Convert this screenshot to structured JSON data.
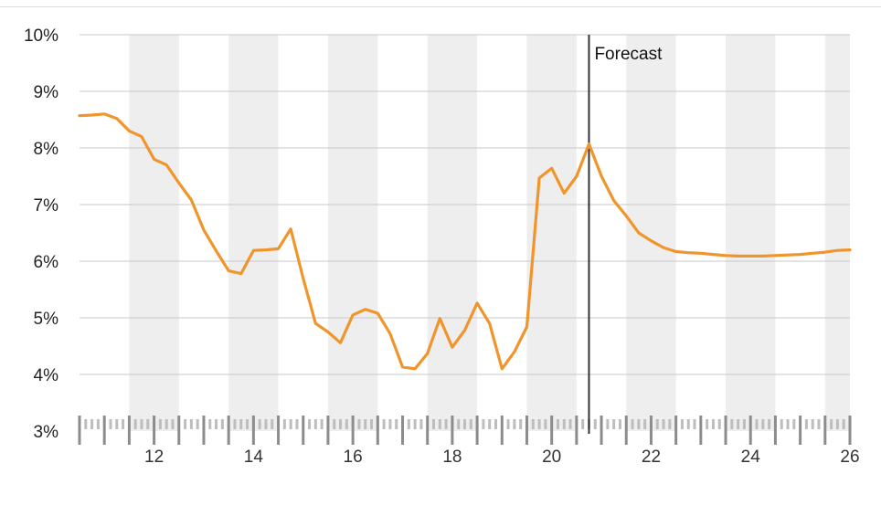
{
  "chart_data": {
    "type": "line",
    "colors": {
      "line": "#f0952c",
      "band": "#eeeeee",
      "grid": "#c8c8c8",
      "forecast_line": "#333333",
      "axis": "#8c8c8c",
      "minor_tick": "#bdbdbd"
    },
    "y_ticks": [
      "3%",
      "4%",
      "5%",
      "6%",
      "7%",
      "8%",
      "9%",
      "10%"
    ],
    "ylim": [
      3,
      10
    ],
    "xlim": [
      10.5,
      26
    ],
    "x_ticks": [
      "12",
      "14",
      "16",
      "18",
      "20",
      "22",
      "24",
      "26"
    ],
    "x_tick_values": [
      12,
      14,
      16,
      18,
      20,
      22,
      24,
      26
    ],
    "shaded_bands": [
      [
        11.5,
        12.5
      ],
      [
        13.5,
        14.5
      ],
      [
        15.5,
        16.5
      ],
      [
        17.5,
        18.5
      ],
      [
        19.5,
        20.5
      ],
      [
        21.5,
        22.5
      ],
      [
        23.5,
        24.5
      ],
      [
        25.5,
        26
      ]
    ],
    "forecast": {
      "x": 20.75,
      "label": "Forecast"
    },
    "series": [
      {
        "x": [
          10.5,
          10.75,
          11.0,
          11.25,
          11.5,
          11.75,
          12.0,
          12.25,
          12.5,
          12.75,
          13.0,
          13.25,
          13.5,
          13.75,
          14.0,
          14.25,
          14.5,
          14.75,
          15.0,
          15.25,
          15.5,
          15.75,
          16.0,
          16.25,
          16.5,
          16.75,
          17.0,
          17.25,
          17.5,
          17.75,
          18.0,
          18.25,
          18.5,
          18.75,
          19.0,
          19.25,
          19.5,
          19.75,
          20.0,
          20.25,
          20.5,
          20.75,
          21.0,
          21.25,
          21.5,
          21.75,
          22.0,
          22.25,
          22.5,
          22.75,
          23.0,
          23.25,
          23.5,
          23.75,
          24.0,
          24.25,
          24.5,
          24.75,
          25.0,
          25.25,
          25.5,
          25.75,
          26.0
        ],
        "values": [
          8.57,
          8.58,
          8.6,
          8.52,
          8.3,
          8.2,
          7.8,
          7.7,
          7.38,
          7.08,
          6.55,
          6.18,
          5.83,
          5.78,
          6.19,
          6.2,
          6.22,
          6.57,
          5.7,
          4.9,
          4.75,
          4.56,
          5.05,
          5.15,
          5.08,
          4.72,
          4.13,
          4.1,
          4.37,
          4.99,
          4.48,
          4.78,
          5.26,
          4.9,
          4.1,
          4.4,
          4.84,
          7.47,
          7.64,
          7.2,
          7.5,
          8.07,
          7.5,
          7.07,
          6.8,
          6.5,
          6.36,
          6.24,
          6.17,
          6.15,
          6.14,
          6.12,
          6.1,
          6.09,
          6.09,
          6.09,
          6.1,
          6.11,
          6.12,
          6.14,
          6.16,
          6.19,
          6.2
        ]
      }
    ]
  }
}
